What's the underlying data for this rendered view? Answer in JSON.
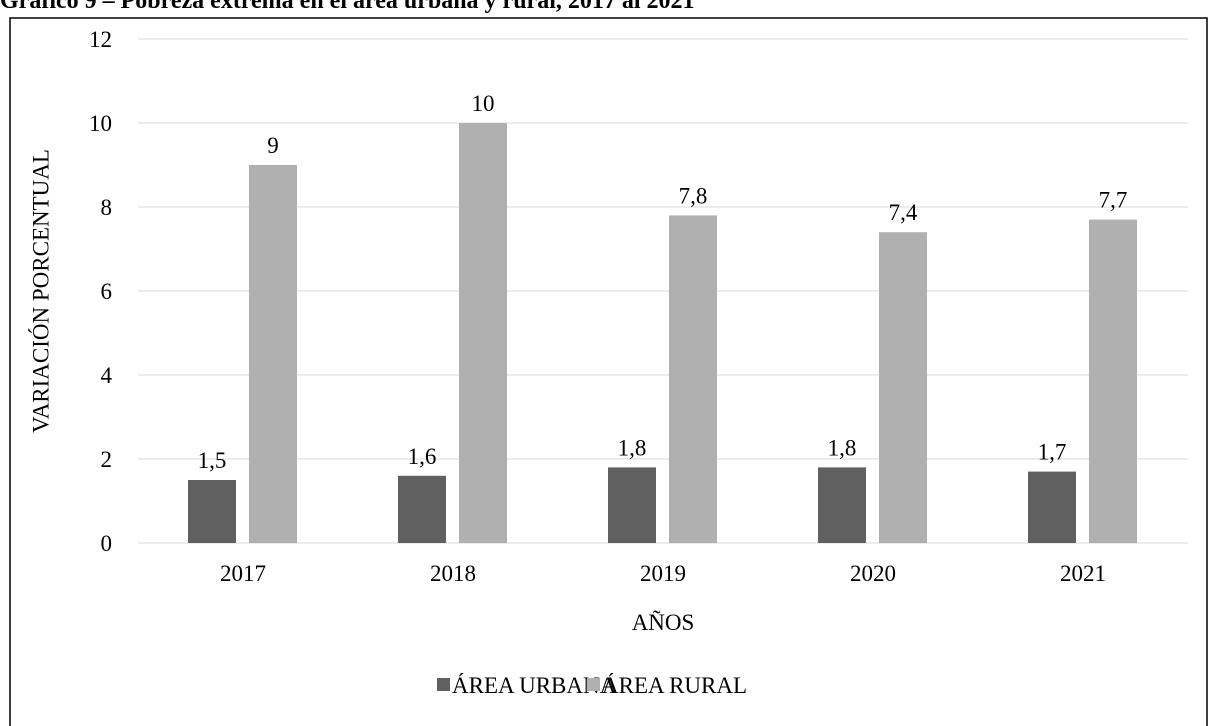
{
  "chart_data": {
    "type": "bar",
    "title": "Gráfico 9 – Pobreza extrema en el área urbana y rural, 2017 al 2021",
    "xlabel": "AÑOS",
    "ylabel": "VARIACIÓN PORCENTUAL",
    "categories": [
      "2017",
      "2018",
      "2019",
      "2020",
      "2021"
    ],
    "series": [
      {
        "name": "ÁREA URBANA",
        "color": "#606060",
        "values": [
          1.5,
          1.6,
          1.8,
          1.8,
          1.7
        ],
        "value_labels": [
          "1,5",
          "1,6",
          "1,8",
          "1,8",
          "1,7"
        ]
      },
      {
        "name": "ÁREA RURAL",
        "color": "#b0b0b0",
        "values": [
          9,
          10,
          7.8,
          7.4,
          7.7
        ],
        "value_labels": [
          "9",
          "10",
          "7,8",
          "7,4",
          "7,7"
        ]
      }
    ],
    "ylim": [
      0,
      12
    ],
    "yticks": [
      0,
      2,
      4,
      6,
      8,
      10,
      12
    ],
    "grid": true,
    "legend": "bottom"
  }
}
